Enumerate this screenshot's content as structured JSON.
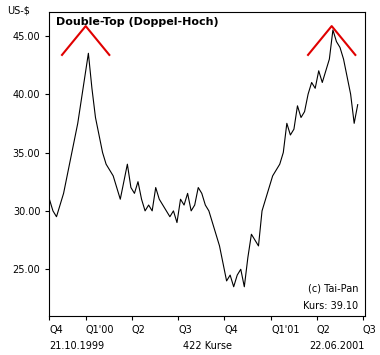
{
  "chart_data": {
    "type": "line",
    "title": "Double-Top (Doppel-Hoch)",
    "y_label": "US-$",
    "x": [
      0,
      1,
      2,
      3,
      4,
      5,
      6,
      7,
      8,
      9,
      10,
      11,
      12,
      13,
      14,
      15,
      16,
      17,
      18,
      19,
      20,
      21,
      22,
      23,
      24,
      25,
      26,
      27,
      28,
      29,
      30,
      31,
      32,
      33,
      34,
      35,
      36,
      37,
      38,
      39,
      40,
      41,
      42,
      43,
      44,
      45,
      46,
      47,
      48,
      49,
      50,
      51,
      52,
      53,
      54,
      55,
      56,
      57,
      58,
      59,
      60,
      61,
      62,
      63,
      64,
      65,
      66,
      67,
      68,
      69,
      70,
      71,
      72,
      73,
      74,
      75,
      76,
      77,
      78,
      79,
      80,
      81,
      82,
      83,
      84,
      85,
      86,
      87
    ],
    "values": [
      31.0,
      30.0,
      29.5,
      30.5,
      31.5,
      33.0,
      34.5,
      36.0,
      37.5,
      39.5,
      41.5,
      43.5,
      40.5,
      38.0,
      36.5,
      35.0,
      34.0,
      33.5,
      33.0,
      32.0,
      31.0,
      32.5,
      34.0,
      32.0,
      31.5,
      32.5,
      31.0,
      30.0,
      30.5,
      30.0,
      32.0,
      31.0,
      30.5,
      30.0,
      29.5,
      30.0,
      29.0,
      31.0,
      30.5,
      31.5,
      30.0,
      30.5,
      32.0,
      31.5,
      30.5,
      30.0,
      29.0,
      28.0,
      27.0,
      25.5,
      24.0,
      24.5,
      23.5,
      24.5,
      25.0,
      23.5,
      26.0,
      28.0,
      27.5,
      27.0,
      30.0,
      31.0,
      32.0,
      33.0,
      33.5,
      34.0,
      35.0,
      37.5,
      36.5,
      37.0,
      39.0,
      38.0,
      38.5,
      40.0,
      41.0,
      40.5,
      42.0,
      41.0,
      42.0,
      43.0,
      45.5,
      44.5,
      44.0,
      43.0,
      41.5,
      40.0,
      37.5,
      39.1
    ],
    "color": "#000000",
    "xlim": [
      0,
      89
    ],
    "xticks": [
      {
        "value": 0,
        "label": "Q4"
      },
      {
        "value": 10.3,
        "label": "Q1'00"
      },
      {
        "value": 23.3,
        "label": "Q2"
      },
      {
        "value": 36.3,
        "label": "Q3"
      },
      {
        "value": 49.4,
        "label": "Q4"
      },
      {
        "value": 62.6,
        "label": "Q1'01"
      },
      {
        "value": 75.4,
        "label": "Q2"
      },
      {
        "value": 88.4,
        "label": "Q3"
      }
    ],
    "ylim": [
      21,
      47
    ],
    "yticks": [
      {
        "value": 25,
        "label": "25.00"
      },
      {
        "value": 30,
        "label": "30.00"
      },
      {
        "value": 35,
        "label": "35.00"
      },
      {
        "value": 40,
        "label": "40.00"
      },
      {
        "value": 45,
        "label": "45.00"
      }
    ],
    "grid": false,
    "annotations": [
      "(c) Tai-Pan",
      "Kurs: 39.10"
    ],
    "footer": [
      "21.10.1999",
      "422 Kurse",
      "22.06.2001"
    ]
  }
}
